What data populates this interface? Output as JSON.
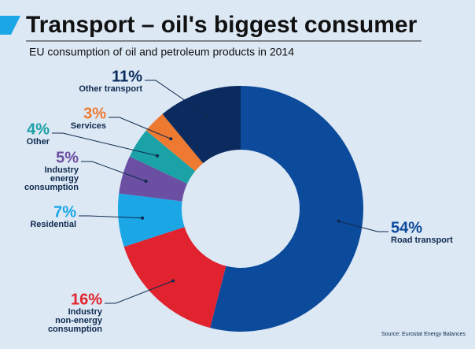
{
  "chart_data": {
    "type": "donut",
    "title": "Transport – oil's biggest consumer",
    "subtitle": "EU consumption of oil and petroleum products in 2014",
    "source": "Source: Eurostat Energy Balances",
    "categories": [
      "Road transport",
      "Industry non-energy consumption",
      "Residential",
      "Industry energy consumption",
      "Other",
      "Services",
      "Other transport"
    ],
    "values": [
      54,
      16,
      7,
      5,
      4,
      3,
      11
    ],
    "value_labels": [
      "54%",
      "16%",
      "7%",
      "5%",
      "4%",
      "3%",
      "11%"
    ],
    "colors": [
      "#0c4a9b",
      "#e1232f",
      "#1ba6e6",
      "#6b4fa2",
      "#1ba2a6",
      "#ee7a31",
      "#0b2b5e"
    ]
  }
}
